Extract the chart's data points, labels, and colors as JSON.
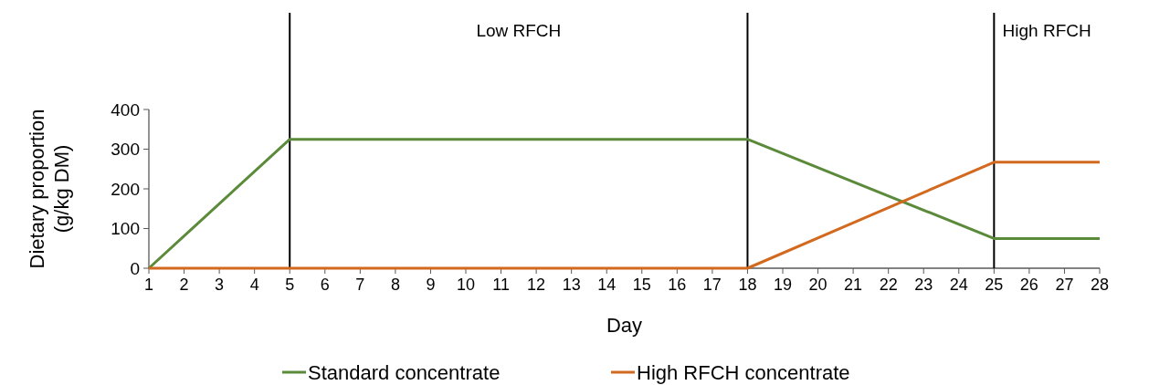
{
  "chart_data": {
    "type": "line",
    "xlabel": "Day",
    "ylabel": "Dietary proportion\n(g/kg DM)",
    "xlim": [
      1,
      28
    ],
    "xticks": [
      1,
      2,
      3,
      4,
      5,
      6,
      7,
      8,
      9,
      10,
      11,
      12,
      13,
      14,
      15,
      16,
      17,
      18,
      19,
      20,
      21,
      22,
      23,
      24,
      25,
      26,
      27,
      28
    ],
    "ylim": [
      0,
      400
    ],
    "yticks": [
      0,
      100,
      200,
      300,
      400
    ],
    "grid": false,
    "legend": "bottom",
    "marker": "none",
    "line_style": "solid",
    "series": [
      {
        "name": "Standard concentrate",
        "color": "#5b8a3a",
        "x": [
          1,
          5,
          18,
          25,
          28
        ],
        "values": [
          0,
          325,
          325,
          75,
          75
        ]
      },
      {
        "name": "High RFCH concentrate",
        "color": "#d2691e",
        "x": [
          1,
          5,
          18,
          25,
          28
        ],
        "values": [
          0,
          0,
          0,
          267,
          267
        ]
      }
    ],
    "ref_lines": [
      {
        "axis": "x",
        "value": 5,
        "color": "#000000"
      },
      {
        "axis": "x",
        "value": 18,
        "color": "#000000"
      },
      {
        "axis": "x",
        "value": 25,
        "color": "#000000",
        "label": "High RFCH"
      }
    ],
    "annotations": [
      "Low RFCH"
    ]
  }
}
